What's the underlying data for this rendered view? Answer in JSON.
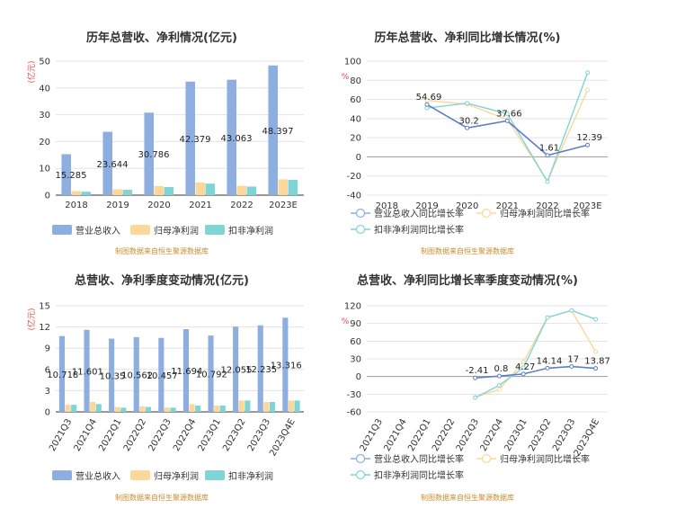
{
  "colors": {
    "revenue": "#8eaedf",
    "net_profit": "#fbd89a",
    "deducted_profit": "#7fd4d6",
    "source_text": "#d08a2c",
    "unit_text": "#e8473c"
  },
  "chart_data": [
    {
      "id": "annual-bars",
      "type": "bar",
      "title": "历年总营收、净利情况(亿元)",
      "ylabel": "(亿元)",
      "ylim": [
        0,
        50
      ],
      "yticks": [
        0,
        10,
        20,
        30,
        40,
        50
      ],
      "categories": [
        "2018",
        "2019",
        "2020",
        "2021",
        "2022",
        "2023E"
      ],
      "series": [
        {
          "name": "营业总收入",
          "values": [
            15.285,
            23.644,
            30.786,
            42.379,
            43.063,
            48.397
          ]
        },
        {
          "name": "归母净利润",
          "values": [
            1.5,
            2.2,
            3.4,
            4.7,
            3.5,
            5.9
          ]
        },
        {
          "name": "扣非净利润",
          "values": [
            1.3,
            2.0,
            3.0,
            4.3,
            3.2,
            5.7
          ]
        }
      ],
      "data_labels": [
        "15.285",
        "23.644",
        "30.786",
        "42.379",
        "43.063",
        "48.397"
      ],
      "source": "制图数据来自恒生聚源数据库"
    },
    {
      "id": "annual-growth",
      "type": "line",
      "title": "历年总营收、净利同比增长情况(%)",
      "ylabel": "%",
      "ylim": [
        -40,
        100
      ],
      "yticks": [
        -40,
        -20,
        0,
        20,
        40,
        60,
        80,
        100
      ],
      "categories": [
        "2018",
        "2019",
        "2020",
        "2021",
        "2022",
        "2023E"
      ],
      "series": [
        {
          "name": "营业总收入同比增长率",
          "values": [
            null,
            54.69,
            30.2,
            37.66,
            1.61,
            12.39
          ]
        },
        {
          "name": "归母净利润同比增长率",
          "values": [
            null,
            59,
            55,
            39,
            -25,
            70
          ]
        },
        {
          "name": "扣非净利润同比增长率",
          "values": [
            null,
            51,
            56,
            45,
            -26,
            88
          ]
        }
      ],
      "data_labels": [
        "",
        "54.69",
        "30.2",
        "37.66",
        "1.61",
        "12.39"
      ],
      "source": "制图数据来自恒生聚源数据库"
    },
    {
      "id": "quarterly-bars",
      "type": "bar",
      "title": "总营收、净利季度变动情况(亿元)",
      "ylabel": "(亿元)",
      "ylim": [
        0,
        15
      ],
      "yticks": [
        0,
        3,
        6,
        9,
        12,
        15
      ],
      "categories": [
        "2021Q3",
        "2021Q4",
        "2022Q1",
        "2022Q2",
        "2022Q3",
        "2022Q4",
        "2023Q1",
        "2023Q2",
        "2023Q3",
        "2023Q4E"
      ],
      "series": [
        {
          "name": "营业总收入",
          "values": [
            10.718,
            11.601,
            10.35,
            10.562,
            10.457,
            11.694,
            10.792,
            12.055,
            12.235,
            13.316
          ]
        },
        {
          "name": "归母净利润",
          "values": [
            1.0,
            1.4,
            0.7,
            0.8,
            0.6,
            1.1,
            0.9,
            1.6,
            1.4,
            1.6
          ]
        },
        {
          "name": "扣非净利润",
          "values": [
            1.0,
            1.1,
            0.6,
            0.7,
            0.6,
            0.9,
            0.9,
            1.6,
            1.4,
            1.6
          ]
        }
      ],
      "data_labels": [
        "10.718",
        "11.601",
        "10.35",
        "10.562",
        "10.457",
        "11.694",
        "10.792",
        "12.055",
        "12.235",
        "13.316"
      ],
      "source": "制图数据来自恒生聚源数据库"
    },
    {
      "id": "quarterly-growth",
      "type": "line",
      "title": "总营收、净利同比增长率季度变动情况(%)",
      "ylabel": "%",
      "ylim": [
        -60,
        120
      ],
      "yticks": [
        -60,
        -30,
        0,
        30,
        60,
        90,
        120
      ],
      "categories": [
        "2021Q3",
        "2021Q4",
        "2022Q1",
        "2022Q2",
        "2022Q3",
        "2022Q4",
        "2023Q1",
        "2023Q2",
        "2023Q3",
        "2023Q4E"
      ],
      "series": [
        {
          "name": "营业总收入同比增长率",
          "values": [
            null,
            null,
            null,
            null,
            -2.41,
            0.8,
            4.27,
            14.14,
            17,
            13.87
          ]
        },
        {
          "name": "归母净利润同比增长率",
          "values": [
            null,
            null,
            null,
            null,
            -35,
            -22,
            25,
            100,
            112,
            42
          ]
        },
        {
          "name": "扣非净利润同比增长率",
          "values": [
            null,
            null,
            null,
            null,
            -36,
            -15,
            15,
            100,
            112,
            97
          ]
        }
      ],
      "data_labels": [
        "",
        "",
        "",
        "",
        "-2.41",
        "0.8",
        "4.27",
        "14.14",
        "17",
        "13.87"
      ],
      "source": "制图数据来自恒生聚源数据库"
    }
  ]
}
